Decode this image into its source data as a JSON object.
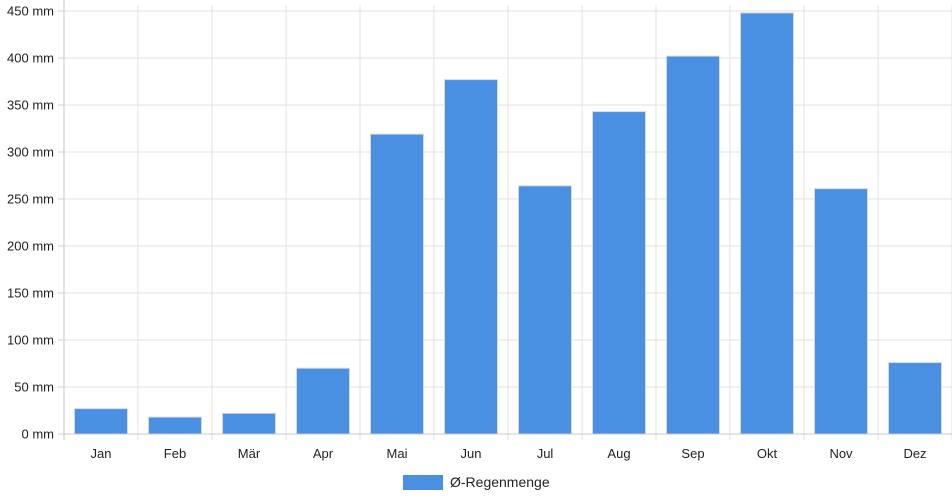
{
  "chart_data": {
    "type": "bar",
    "categories": [
      "Jan",
      "Feb",
      "Mär",
      "Apr",
      "Mai",
      "Jun",
      "Jul",
      "Aug",
      "Sep",
      "Okt",
      "Nov",
      "Dez"
    ],
    "series": [
      {
        "name": "Ø-Regenmenge",
        "values": [
          27,
          18,
          22,
          70,
          319,
          377,
          264,
          343,
          402,
          448,
          261,
          76
        ],
        "color": "#4a90e2"
      }
    ],
    "y_ticks": [
      "0 mm",
      "50 mm",
      "100 mm",
      "150 mm",
      "200 mm",
      "250 mm",
      "300 mm",
      "350 mm",
      "400 mm",
      "450 mm"
    ],
    "ylim": [
      0,
      450
    ],
    "y_unit": "mm",
    "grid": true,
    "legend_position": "bottom"
  }
}
